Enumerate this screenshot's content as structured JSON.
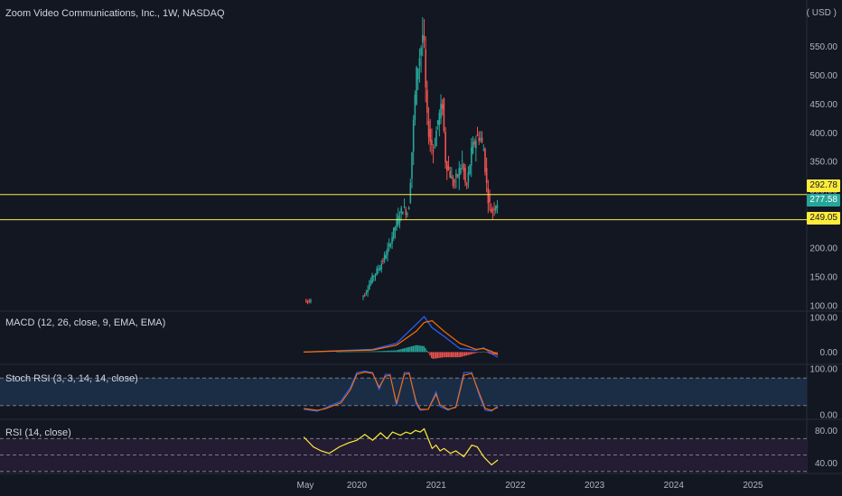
{
  "header": {
    "title": "Zoom Video Communications, Inc., 1W, NASDAQ",
    "currency": "( USD )"
  },
  "colors": {
    "background": "#131722",
    "up": "#26a69a",
    "down": "#ef5350",
    "level_line": "#ffeb3b",
    "macd_line": "#2962ff",
    "signal_line": "#ff6d00",
    "stoch_k": "#2962ff",
    "stoch_d": "#ff6d00",
    "rsi_line": "#ffeb3b",
    "stoch_band": "#1b2d45",
    "rsi_band": "#241c33"
  },
  "price_tags": {
    "upper": "292.78",
    "current": "277.58",
    "lower": "249.05"
  },
  "indicators": {
    "macd_label": "MACD (12, 26, close, 9, EMA, EMA)",
    "stoch_label": "Stoch RSI (3, 3, 14, 14, close)",
    "rsi_label": "RSI (14, close)"
  },
  "chart_data": {
    "type": "candlestick",
    "price_axis": {
      "ticks": [
        "550.00",
        "500.00",
        "450.00",
        "400.00",
        "350.00",
        "300.00",
        "250.00",
        "200.00",
        "150.00",
        "100.00"
      ],
      "ylim": [
        95,
        590
      ]
    },
    "time_axis": {
      "ticks": [
        "May",
        "2020",
        "2021",
        "2022",
        "2023",
        "2024",
        "2025"
      ]
    },
    "horizontal_levels": [
      292.78,
      249.05
    ],
    "last_price": 277.58,
    "price_path": [
      [
        2019.33,
        110
      ],
      [
        2019.5,
        100
      ],
      [
        2019.7,
        90
      ],
      [
        2019.85,
        95
      ],
      [
        2020.0,
        105
      ],
      [
        2020.1,
        120
      ],
      [
        2020.2,
        150
      ],
      [
        2020.3,
        170
      ],
      [
        2020.4,
        200
      ],
      [
        2020.5,
        245
      ],
      [
        2020.58,
        270
      ],
      [
        2020.65,
        260
      ],
      [
        2020.68,
        330
      ],
      [
        2020.72,
        430
      ],
      [
        2020.75,
        500
      ],
      [
        2020.8,
        540
      ],
      [
        2020.84,
        580
      ],
      [
        2020.88,
        430
      ],
      [
        2020.92,
        390
      ],
      [
        2020.97,
        370
      ],
      [
        2021.02,
        420
      ],
      [
        2021.08,
        450
      ],
      [
        2021.12,
        350
      ],
      [
        2021.17,
        330
      ],
      [
        2021.22,
        310
      ],
      [
        2021.28,
        330
      ],
      [
        2021.33,
        350
      ],
      [
        2021.38,
        300
      ],
      [
        2021.45,
        370
      ],
      [
        2021.5,
        390
      ],
      [
        2021.55,
        395
      ],
      [
        2021.6,
        370
      ],
      [
        2021.65,
        290
      ],
      [
        2021.7,
        262
      ],
      [
        2021.74,
        275
      ],
      [
        2021.78,
        280
      ]
    ],
    "macd": {
      "axis_ticks": [
        "100.00",
        "0.00"
      ],
      "ylim": [
        -25,
        110
      ],
      "macd": [
        [
          2019.33,
          0
        ],
        [
          2020.2,
          8
        ],
        [
          2020.5,
          25
        ],
        [
          2020.75,
          80
        ],
        [
          2020.85,
          102
        ],
        [
          2020.95,
          70
        ],
        [
          2021.1,
          45
        ],
        [
          2021.3,
          10
        ],
        [
          2021.5,
          5
        ],
        [
          2021.6,
          12
        ],
        [
          2021.7,
          -5
        ],
        [
          2021.78,
          -15
        ]
      ],
      "signal": [
        [
          2019.33,
          0
        ],
        [
          2020.2,
          6
        ],
        [
          2020.5,
          20
        ],
        [
          2020.75,
          60
        ],
        [
          2020.85,
          85
        ],
        [
          2020.95,
          90
        ],
        [
          2021.1,
          60
        ],
        [
          2021.3,
          25
        ],
        [
          2021.5,
          8
        ],
        [
          2021.6,
          10
        ],
        [
          2021.7,
          2
        ],
        [
          2021.78,
          -8
        ]
      ]
    },
    "stoch_rsi": {
      "axis_ticks": [
        "100.00",
        "0.00"
      ],
      "ylim": [
        0,
        100
      ],
      "bands": [
        80,
        20
      ],
      "k": [
        [
          2019.33,
          12
        ],
        [
          2019.5,
          8
        ],
        [
          2019.6,
          15
        ],
        [
          2019.8,
          30
        ],
        [
          2019.92,
          60
        ],
        [
          2020.0,
          92
        ],
        [
          2020.1,
          95
        ],
        [
          2020.2,
          92
        ],
        [
          2020.28,
          55
        ],
        [
          2020.36,
          88
        ],
        [
          2020.42,
          88
        ],
        [
          2020.5,
          20
        ],
        [
          2020.6,
          92
        ],
        [
          2020.66,
          92
        ],
        [
          2020.75,
          22
        ],
        [
          2020.8,
          10
        ],
        [
          2020.9,
          12
        ],
        [
          2021.0,
          50
        ],
        [
          2021.05,
          18
        ],
        [
          2021.15,
          10
        ],
        [
          2021.25,
          18
        ],
        [
          2021.35,
          92
        ],
        [
          2021.45,
          92
        ],
        [
          2021.55,
          40
        ],
        [
          2021.62,
          10
        ],
        [
          2021.7,
          8
        ],
        [
          2021.78,
          20
        ]
      ],
      "d": [
        [
          2019.33,
          14
        ],
        [
          2019.5,
          10
        ],
        [
          2019.6,
          13
        ],
        [
          2019.8,
          26
        ],
        [
          2019.92,
          55
        ],
        [
          2020.0,
          88
        ],
        [
          2020.1,
          93
        ],
        [
          2020.2,
          90
        ],
        [
          2020.28,
          60
        ],
        [
          2020.36,
          84
        ],
        [
          2020.42,
          86
        ],
        [
          2020.5,
          25
        ],
        [
          2020.6,
          88
        ],
        [
          2020.66,
          90
        ],
        [
          2020.75,
          28
        ],
        [
          2020.8,
          12
        ],
        [
          2020.9,
          12
        ],
        [
          2021.0,
          45
        ],
        [
          2021.05,
          22
        ],
        [
          2021.15,
          12
        ],
        [
          2021.25,
          16
        ],
        [
          2021.35,
          86
        ],
        [
          2021.45,
          90
        ],
        [
          2021.55,
          45
        ],
        [
          2021.62,
          14
        ],
        [
          2021.7,
          10
        ],
        [
          2021.78,
          16
        ]
      ]
    },
    "rsi": {
      "axis_ticks": [
        "80.00",
        "40.00"
      ],
      "ylim": [
        33,
        88
      ],
      "bands": [
        70,
        30
      ],
      "values": [
        [
          2019.33,
          72
        ],
        [
          2019.45,
          60
        ],
        [
          2019.55,
          55
        ],
        [
          2019.65,
          52
        ],
        [
          2019.78,
          60
        ],
        [
          2019.9,
          65
        ],
        [
          2020.0,
          68
        ],
        [
          2020.1,
          75
        ],
        [
          2020.2,
          68
        ],
        [
          2020.3,
          77
        ],
        [
          2020.38,
          70
        ],
        [
          2020.45,
          78
        ],
        [
          2020.55,
          74
        ],
        [
          2020.62,
          78
        ],
        [
          2020.68,
          76
        ],
        [
          2020.74,
          80
        ],
        [
          2020.8,
          78
        ],
        [
          2020.85,
          82
        ],
        [
          2020.9,
          70
        ],
        [
          2020.95,
          58
        ],
        [
          2021.0,
          62
        ],
        [
          2021.05,
          55
        ],
        [
          2021.1,
          58
        ],
        [
          2021.18,
          52
        ],
        [
          2021.25,
          55
        ],
        [
          2021.35,
          48
        ],
        [
          2021.45,
          62
        ],
        [
          2021.52,
          60
        ],
        [
          2021.6,
          48
        ],
        [
          2021.7,
          38
        ],
        [
          2021.78,
          44
        ]
      ]
    }
  }
}
